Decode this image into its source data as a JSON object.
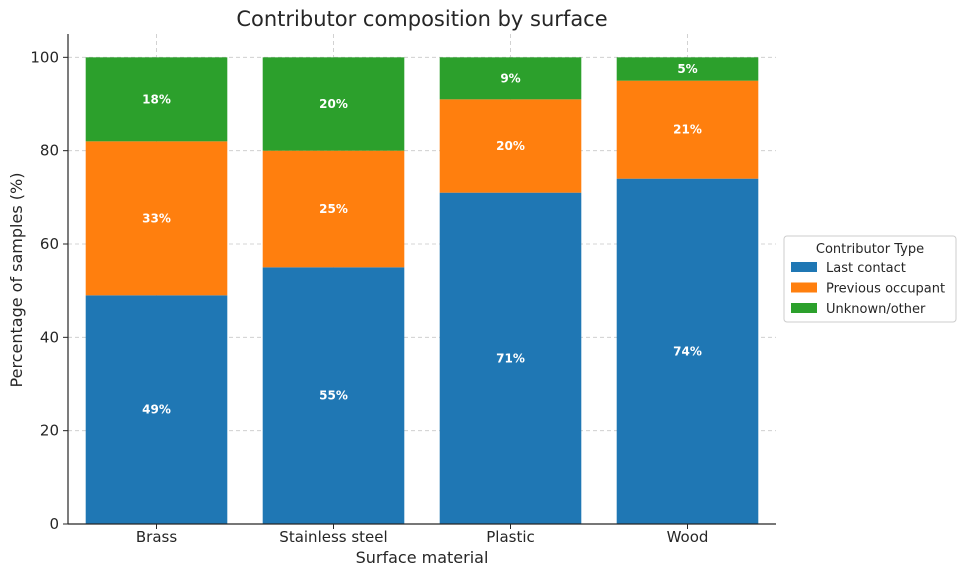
{
  "chart_data": {
    "type": "bar",
    "stacked": true,
    "title": "Contributor composition by surface",
    "xlabel": "Surface material",
    "ylabel": "Percentage of samples (%)",
    "ylim": [
      0,
      105
    ],
    "yticks": [
      0,
      20,
      40,
      60,
      80,
      100
    ],
    "grid": true,
    "legend": {
      "title": "Contributor Type",
      "placement": "right"
    },
    "categories": [
      "Brass",
      "Stainless steel",
      "Plastic",
      "Wood"
    ],
    "series": [
      {
        "name": "Last contact",
        "color": "#1f77b4",
        "values": [
          49,
          55,
          71,
          74
        ],
        "labels": [
          "49%",
          "55%",
          "71%",
          "74%"
        ]
      },
      {
        "name": "Previous occupant",
        "color": "#ff7f0e",
        "values": [
          33,
          25,
          20,
          21
        ],
        "labels": [
          "33%",
          "25%",
          "20%",
          "21%"
        ]
      },
      {
        "name": "Unknown/other",
        "color": "#2ca02c",
        "values": [
          18,
          20,
          9,
          5
        ],
        "labels": [
          "18%",
          "20%",
          "9%",
          "5%"
        ]
      }
    ]
  }
}
